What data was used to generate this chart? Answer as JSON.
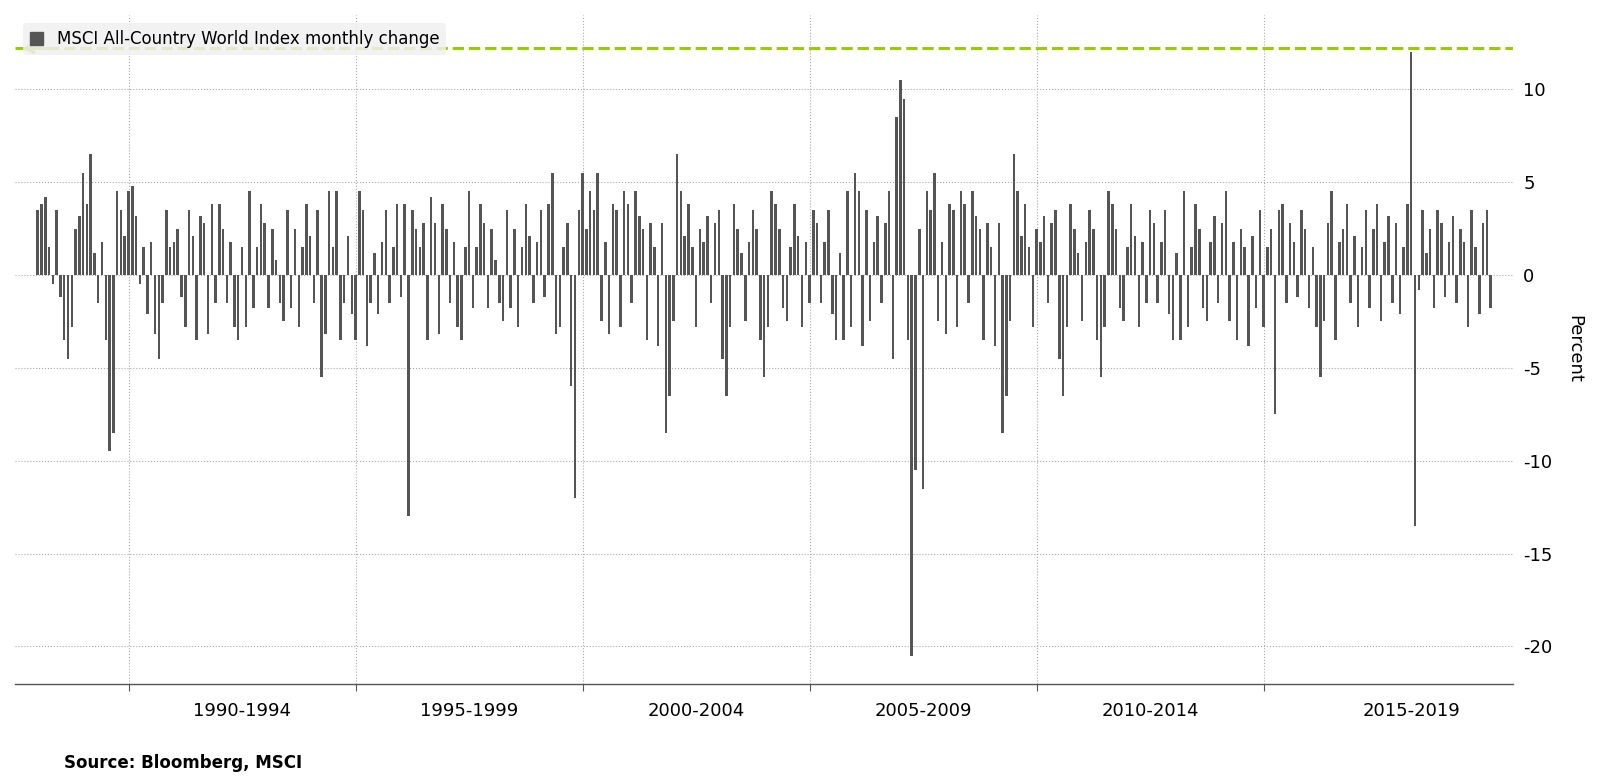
{
  "title": "MSCI All-Country World Index monthly change",
  "ylabel": "Percent",
  "source": "Source: Bloomberg, MSCI",
  "dashed_line_y": 12.2,
  "ylim": [
    -22,
    14
  ],
  "yticks": [
    10,
    5,
    0,
    -5,
    -10,
    -15,
    -20
  ],
  "ytick_labels": [
    "10",
    "5",
    "0",
    "-5",
    "-10",
    "-15",
    "-20"
  ],
  "background_color": "#ffffff",
  "bar_color": "#555555",
  "dashed_color": "#99cc00",
  "period_boundaries": [
    1988.0,
    1990.0,
    1995.0,
    2000.0,
    2005.0,
    2010.0,
    2015.0,
    2021.5
  ],
  "period_labels": [
    "1990-1994",
    "1995-1999",
    "2000-2004",
    "2005-2009",
    "2010-2014",
    "2015-2019"
  ],
  "start_year": 1988,
  "start_month": 1,
  "monthly_returns": [
    3.5,
    3.8,
    4.2,
    1.5,
    -0.5,
    3.5,
    -1.2,
    -3.5,
    -4.5,
    -2.8,
    2.5,
    3.2,
    5.5,
    3.8,
    6.5,
    1.2,
    -1.5,
    1.8,
    -3.5,
    -9.5,
    -8.5,
    4.5,
    3.5,
    2.1,
    4.5,
    4.8,
    3.2,
    -0.5,
    1.5,
    -2.1,
    1.8,
    -3.2,
    -4.5,
    -1.5,
    3.5,
    1.5,
    1.8,
    2.5,
    -1.2,
    -2.8,
    3.5,
    2.1,
    -3.5,
    3.2,
    2.8,
    -3.2,
    3.8,
    -1.5,
    3.8,
    2.5,
    -1.5,
    1.8,
    -2.8,
    -3.5,
    1.5,
    -2.8,
    4.5,
    -1.8,
    1.5,
    3.8,
    2.8,
    -1.8,
    2.5,
    0.8,
    -1.5,
    -2.5,
    3.5,
    -1.8,
    2.5,
    -2.8,
    1.5,
    3.8,
    2.1,
    -1.5,
    3.5,
    -5.5,
    -3.2,
    4.5,
    1.5,
    4.5,
    -3.5,
    -1.5,
    2.1,
    -2.1,
    -3.5,
    4.5,
    3.5,
    -3.8,
    -1.5,
    1.2,
    -2.1,
    1.8,
    3.5,
    -1.5,
    1.5,
    3.8,
    -1.2,
    3.8,
    -13.0,
    3.5,
    2.5,
    1.5,
    2.8,
    -3.5,
    4.2,
    2.8,
    -3.2,
    3.8,
    2.5,
    -1.5,
    1.8,
    -2.8,
    -3.5,
    1.5,
    4.5,
    -1.8,
    1.5,
    3.8,
    2.8,
    -1.8,
    2.5,
    0.8,
    -1.5,
    -2.5,
    3.5,
    -1.8,
    2.5,
    -2.8,
    1.5,
    3.8,
    2.1,
    -1.5,
    1.8,
    3.5,
    -1.2,
    3.8,
    5.5,
    -3.2,
    -2.8,
    1.5,
    2.8,
    -6.0,
    -12.0,
    3.5,
    5.5,
    2.5,
    4.5,
    3.5,
    5.5,
    -2.5,
    1.8,
    -3.2,
    3.8,
    3.5,
    -2.8,
    4.5,
    3.8,
    -1.5,
    4.5,
    3.2,
    2.5,
    -3.5,
    2.8,
    1.5,
    -3.8,
    2.8,
    -8.5,
    -6.5,
    -2.5,
    6.5,
    4.5,
    2.1,
    3.8,
    1.5,
    -2.8,
    2.5,
    1.8,
    3.2,
    -1.5,
    2.8,
    3.5,
    -4.5,
    -6.5,
    -2.8,
    3.8,
    2.5,
    1.2,
    -2.5,
    1.8,
    3.5,
    2.5,
    -3.5,
    -5.5,
    -2.8,
    4.5,
    3.8,
    2.5,
    -1.8,
    -2.5,
    1.5,
    3.8,
    2.1,
    -2.8,
    1.8,
    -1.5,
    3.5,
    2.8,
    -1.5,
    1.8,
    3.5,
    -2.1,
    -3.5,
    1.2,
    -3.5,
    4.5,
    -2.8,
    5.5,
    4.5,
    -3.8,
    3.5,
    -2.5,
    1.8,
    3.2,
    -1.5,
    2.8,
    4.5,
    -4.5,
    8.5,
    10.5,
    9.5,
    -3.5,
    -20.5,
    -10.5,
    2.5,
    -11.5,
    4.5,
    3.5,
    5.5,
    -2.5,
    1.8,
    -3.2,
    3.8,
    3.5,
    -2.8,
    4.5,
    3.8,
    -1.5,
    4.5,
    3.2,
    2.5,
    -3.5,
    2.8,
    1.5,
    -3.8,
    2.8,
    -8.5,
    -6.5,
    -2.5,
    6.5,
    4.5,
    2.1,
    3.8,
    1.5,
    -2.8,
    2.5,
    1.8,
    3.2,
    -1.5,
    2.8,
    3.5,
    -4.5,
    -6.5,
    -2.8,
    3.8,
    2.5,
    1.2,
    -2.5,
    1.8,
    3.5,
    2.5,
    -3.5,
    -5.5,
    -2.8,
    4.5,
    3.8,
    2.5,
    -1.8,
    -2.5,
    1.5,
    3.8,
    2.1,
    -2.8,
    1.8,
    -1.5,
    3.5,
    2.8,
    -1.5,
    1.8,
    3.5,
    -2.1,
    -3.5,
    1.2,
    -3.5,
    4.5,
    -2.8,
    1.5,
    3.8,
    2.5,
    -1.8,
    -2.5,
    1.8,
    3.2,
    -1.5,
    2.8,
    4.5,
    -2.5,
    1.8,
    -3.5,
    2.5,
    1.5,
    -3.8,
    2.1,
    -1.8,
    3.5,
    -2.8,
    1.5,
    2.5,
    -7.5,
    3.5,
    3.8,
    -1.5,
    2.8,
    1.8,
    -1.2,
    3.5,
    2.5,
    -1.8,
    1.5,
    -2.8,
    -5.5,
    -2.5,
    2.8,
    4.5,
    -3.5,
    1.8,
    2.5,
    3.8,
    -1.5,
    2.1,
    -2.8,
    1.5,
    3.5,
    -1.8,
    2.5,
    3.8,
    -2.5,
    1.8,
    3.2,
    -1.5,
    2.8,
    -2.1,
    1.5,
    3.8,
    12.0,
    -13.5,
    -0.8,
    3.5,
    1.2,
    2.5,
    -1.8,
    3.5,
    2.8,
    -1.2,
    1.8,
    3.2,
    -1.5,
    2.5,
    1.8,
    -2.8,
    3.5,
    1.5,
    -2.1,
    2.8,
    3.5,
    -1.8
  ]
}
